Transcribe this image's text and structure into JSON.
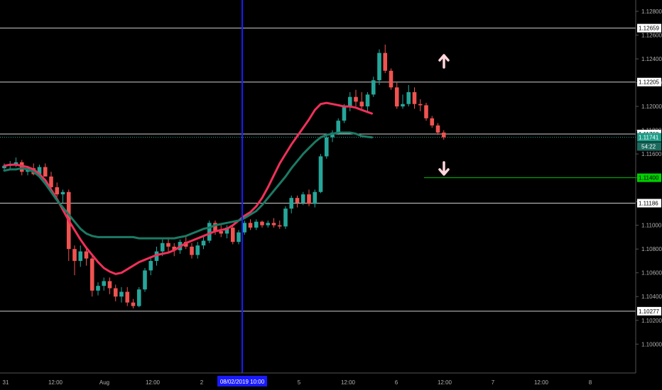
{
  "chart_data": {
    "type": "candlestick",
    "title": "",
    "y_axis_ticks": [
      "1.12800",
      "1.12600",
      "1.12400",
      "1.12200",
      "1.12000",
      "1.11800",
      "1.11600",
      "1.11400",
      "1.11200",
      "1.11000",
      "1.10800",
      "1.10600",
      "1.10400",
      "1.10200",
      "1.10000"
    ],
    "x_axis_ticks": [
      "31",
      "12:00",
      "Aug",
      "12:00",
      "2",
      "12:00",
      "5",
      "12:00",
      "6",
      "12:00",
      "7",
      "12:00",
      "8"
    ],
    "ylim": [
      1.0985,
      1.129
    ],
    "price_levels": [
      {
        "label": "1.12659",
        "value": 1.12659
      },
      {
        "label": "1.12205",
        "value": 1.12205
      },
      {
        "label": "1.11768",
        "value": 1.11768
      },
      {
        "label": "1.11186",
        "value": 1.11186
      },
      {
        "label": "1.10277",
        "value": 1.10277
      }
    ],
    "current_price": {
      "label": "1.11741",
      "value": 1.11741,
      "countdown": "54:22"
    },
    "target_level": {
      "label": "1.11400",
      "value": 1.114
    },
    "crosshair_label": "08/02/2019  10:00",
    "arrows": [
      "up",
      "down"
    ],
    "moving_averages": [
      {
        "color": "#f0305a",
        "values": [
          1.115,
          1.1151,
          1.1151,
          1.115,
          1.1149,
          1.1147,
          1.1143,
          1.1138,
          1.113,
          1.1122,
          1.1113,
          1.1104,
          1.1096,
          1.1088,
          1.1081,
          1.1075,
          1.1069,
          1.1064,
          1.1061,
          1.1059,
          1.106,
          1.1063,
          1.1066,
          1.1069,
          1.1071,
          1.1073,
          1.1075,
          1.1076,
          1.1077,
          1.1079,
          1.1082,
          1.1085,
          1.1087,
          1.1089,
          1.1091,
          1.1093,
          1.1095,
          1.1096,
          1.1097,
          1.11,
          1.1104,
          1.1108,
          1.1111,
          1.1116,
          1.1123,
          1.1132,
          1.1142,
          1.1152,
          1.116,
          1.1168,
          1.1175,
          1.1182,
          1.1189,
          1.1197,
          1.1202,
          1.1203,
          1.1202,
          1.1201,
          1.12,
          1.12,
          1.1199,
          1.1197,
          1.1194
        ]
      },
      {
        "color": "#1b7a64",
        "values": [
          1.1146,
          1.1147,
          1.1147,
          1.1148,
          1.1147,
          1.1145,
          1.1141,
          1.1135,
          1.1128,
          1.1121,
          1.1115,
          1.1109,
          1.1103,
          1.1097,
          1.1093,
          1.1091,
          1.109,
          1.109,
          1.109,
          1.109,
          1.109,
          1.109,
          1.109,
          1.1089,
          1.1089,
          1.1089,
          1.1089,
          1.1089,
          1.1089,
          1.1089,
          1.109,
          1.1091,
          1.1093,
          1.1095,
          1.1097,
          1.1098,
          1.11,
          1.1101,
          1.1102,
          1.1103,
          1.1104,
          1.1106,
          1.1109,
          1.1112,
          1.1117,
          1.1123,
          1.1129,
          1.1135,
          1.1141,
          1.1148,
          1.1154,
          1.116,
          1.1165,
          1.117,
          1.1174,
          1.1176,
          1.1177,
          1.1178,
          1.1178,
          1.1178,
          1.1177,
          1.1175,
          1.1174
        ]
      }
    ],
    "candles": [
      [
        1.1148,
        1.1152,
        1.1146,
        1.115
      ],
      [
        1.115,
        1.1154,
        1.1147,
        1.1151
      ],
      [
        1.1151,
        1.1157,
        1.1149,
        1.1153
      ],
      [
        1.1153,
        1.1155,
        1.1142,
        1.1145
      ],
      [
        1.1145,
        1.115,
        1.1142,
        1.1148
      ],
      [
        1.1148,
        1.1152,
        1.1142,
        1.1143
      ],
      [
        1.1143,
        1.1151,
        1.114,
        1.1149
      ],
      [
        1.1149,
        1.1152,
        1.1141,
        1.1141
      ],
      [
        1.1141,
        1.1145,
        1.113,
        1.1132
      ],
      [
        1.1132,
        1.1136,
        1.1124,
        1.1126
      ],
      [
        1.1126,
        1.113,
        1.1119,
        1.1128
      ],
      [
        1.1128,
        1.113,
        1.107,
        1.108
      ],
      [
        1.108,
        1.1083,
        1.1058,
        1.107
      ],
      [
        1.107,
        1.1083,
        1.1065,
        1.1078
      ],
      [
        1.1078,
        1.1082,
        1.1066,
        1.1072
      ],
      [
        1.1072,
        1.1075,
        1.104,
        1.1045
      ],
      [
        1.1045,
        1.1052,
        1.1041,
        1.1049
      ],
      [
        1.1049,
        1.1056,
        1.1045,
        1.1053
      ],
      [
        1.1053,
        1.1056,
        1.1042,
        1.1047
      ],
      [
        1.1047,
        1.105,
        1.1036,
        1.104
      ],
      [
        1.104,
        1.1048,
        1.1035,
        1.1044
      ],
      [
        1.1044,
        1.1048,
        1.1032,
        1.1035
      ],
      [
        1.1035,
        1.1038,
        1.103,
        1.1032
      ],
      [
        1.1032,
        1.1048,
        1.1031,
        1.1046
      ],
      [
        1.1046,
        1.1064,
        1.1044,
        1.1062
      ],
      [
        1.1062,
        1.1072,
        1.1058,
        1.107
      ],
      [
        1.107,
        1.1082,
        1.1066,
        1.1078
      ],
      [
        1.1078,
        1.1088,
        1.1074,
        1.1085
      ],
      [
        1.1085,
        1.109,
        1.1078,
        1.1082
      ],
      [
        1.1082,
        1.1085,
        1.1074,
        1.1079
      ],
      [
        1.1079,
        1.1088,
        1.1076,
        1.1086
      ],
      [
        1.1086,
        1.109,
        1.108,
        1.1082
      ],
      [
        1.1082,
        1.1085,
        1.1072,
        1.1075
      ],
      [
        1.1075,
        1.1086,
        1.1072,
        1.1083
      ],
      [
        1.1083,
        1.109,
        1.108,
        1.1087
      ],
      [
        1.1087,
        1.1104,
        1.1085,
        1.1102
      ],
      [
        1.1102,
        1.1104,
        1.1092,
        1.1095
      ],
      [
        1.1095,
        1.11,
        1.109,
        1.1093
      ],
      [
        1.1093,
        1.11,
        1.1089,
        1.1098
      ],
      [
        1.1098,
        1.11,
        1.1084,
        1.1086
      ],
      [
        1.1086,
        1.1096,
        1.1084,
        1.1094
      ],
      [
        1.1094,
        1.1104,
        1.1092,
        1.1102
      ],
      [
        1.1102,
        1.1105,
        1.1096,
        1.1098
      ],
      [
        1.1098,
        1.1105,
        1.1096,
        1.1103
      ],
      [
        1.1103,
        1.1104,
        1.1098,
        1.11
      ],
      [
        1.11,
        1.1104,
        1.1098,
        1.1102
      ],
      [
        1.1102,
        1.1106,
        1.1098,
        1.11
      ],
      [
        1.11,
        1.1104,
        1.1097,
        1.1099
      ],
      [
        1.1099,
        1.1116,
        1.1097,
        1.1114
      ],
      [
        1.1114,
        1.1125,
        1.111,
        1.1123
      ],
      [
        1.1123,
        1.1125,
        1.1115,
        1.1119
      ],
      [
        1.1119,
        1.1128,
        1.1117,
        1.1126
      ],
      [
        1.1126,
        1.113,
        1.1116,
        1.1118
      ],
      [
        1.1118,
        1.113,
        1.1115,
        1.1128
      ],
      [
        1.1128,
        1.116,
        1.1127,
        1.1158
      ],
      [
        1.1158,
        1.1176,
        1.1156,
        1.1174
      ],
      [
        1.1174,
        1.118,
        1.117,
        1.1178
      ],
      [
        1.1178,
        1.119,
        1.1176,
        1.1188
      ],
      [
        1.1188,
        1.1202,
        1.1186,
        1.12
      ],
      [
        1.12,
        1.1212,
        1.1196,
        1.1208
      ],
      [
        1.1208,
        1.1214,
        1.12,
        1.1204
      ],
      [
        1.1204,
        1.1212,
        1.1198,
        1.12
      ],
      [
        1.12,
        1.1212,
        1.1196,
        1.121
      ],
      [
        1.121,
        1.1225,
        1.1208,
        1.1222
      ],
      [
        1.1222,
        1.1248,
        1.1218,
        1.1245
      ],
      [
        1.1245,
        1.1252,
        1.1228,
        1.123
      ],
      [
        1.123,
        1.1232,
        1.1214,
        1.1216
      ],
      [
        1.1216,
        1.122,
        1.1198,
        1.12
      ],
      [
        1.12,
        1.121,
        1.1198,
        1.1202
      ],
      [
        1.1202,
        1.1218,
        1.12,
        1.1212
      ],
      [
        1.1212,
        1.1216,
        1.1198,
        1.1202
      ],
      [
        1.1202,
        1.1206,
        1.1196,
        1.1201
      ],
      [
        1.1201,
        1.1203,
        1.1188,
        1.119
      ],
      [
        1.119,
        1.1192,
        1.1182,
        1.1184
      ],
      [
        1.1184,
        1.1186,
        1.1176,
        1.1178
      ],
      [
        1.1178,
        1.118,
        1.1172,
        1.1174
      ]
    ],
    "colors": {
      "up": "#26a69a",
      "down": "#ef5350",
      "crosshair": "#1a1aff",
      "level_line": "#cfcfcf",
      "target_line": "#00c000",
      "current_price": "#1e9e8a",
      "arrow": "#ffd6dc"
    }
  }
}
